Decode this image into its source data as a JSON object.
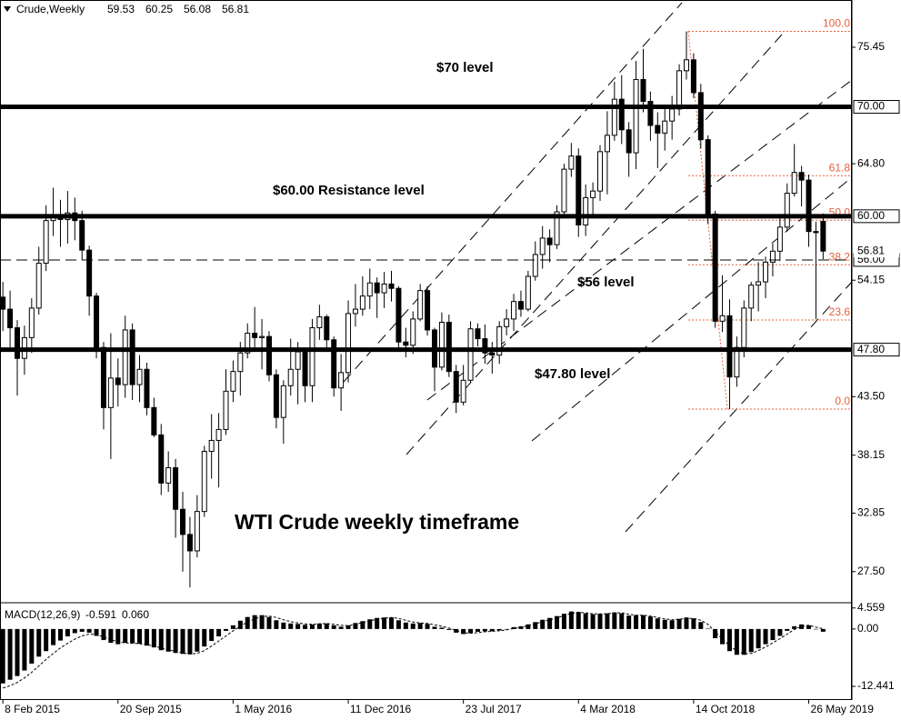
{
  "chart_data": {
    "type": "candlestick",
    "symbol": "Crude,Weekly",
    "x": [
      0,
      2,
      4,
      6,
      8,
      10,
      12,
      14,
      16,
      18,
      20,
      22,
      24,
      26,
      28,
      30,
      32,
      34,
      36,
      38,
      40,
      42,
      44,
      46,
      48,
      50,
      52,
      54,
      56,
      58,
      60,
      62,
      64,
      66,
      68,
      70,
      72,
      74,
      76,
      78,
      80,
      82,
      84,
      86,
      88,
      90,
      92,
      94,
      96,
      98,
      100,
      102,
      104,
      106,
      108,
      110,
      112,
      114,
      116,
      118,
      120,
      122,
      124,
      126,
      128,
      130,
      132,
      134,
      136,
      138,
      140,
      142,
      144,
      146,
      148,
      150,
      152,
      154,
      156,
      158,
      160,
      162,
      164,
      166,
      168,
      170,
      172,
      174,
      176,
      178,
      180,
      182,
      184,
      186,
      188,
      190,
      192,
      194,
      196,
      198,
      200,
      202,
      204,
      206,
      208,
      210,
      212,
      214,
      216,
      218,
      220,
      222,
      224,
      226,
      228
    ],
    "open": [
      52.6,
      51.5,
      49.8,
      47.0,
      48.9,
      51.6,
      55.7,
      59.6,
      60.0,
      59.7,
      60.3,
      59.6,
      56.9,
      52.7,
      48.0,
      42.5,
      45.2,
      44.6,
      49.6,
      44.6,
      46.0,
      42.5,
      40.0,
      35.6,
      37.0,
      33.2,
      30.9,
      29.4,
      33.0,
      38.5,
      39.5,
      40.5,
      44.0,
      45.8,
      47.5,
      49.3,
      48.9,
      49.0,
      45.5,
      41.6,
      44.5,
      46.0,
      47.6,
      44.5,
      49.8,
      50.8,
      48.7,
      44.3,
      45.7,
      51.1,
      51.5,
      52.7,
      53.9,
      53.0,
      53.8,
      53.4,
      48.5,
      48.2,
      50.6,
      53.2,
      49.6,
      46.2,
      50.3,
      45.8,
      43.0,
      45.0,
      49.7,
      48.8,
      47.5,
      47.3,
      49.9,
      50.6,
      52.2,
      51.5,
      54.5,
      56.5,
      58.0,
      57.4,
      60.4,
      64.3,
      65.5,
      59.2,
      61.7,
      62.3,
      65.9,
      67.4,
      70.7,
      67.9,
      65.8,
      72.5,
      70.5,
      68.3,
      67.6,
      68.7,
      69.8,
      73.3,
      74.3,
      71.3,
      67.0,
      60.2,
      50.4,
      50.9,
      45.3,
      48.0,
      51.6,
      53.7,
      54.0,
      55.8,
      56.8,
      59.0,
      62.1,
      64.0,
      63.3,
      58.6,
      59.53
    ],
    "high": [
      54.0,
      53.2,
      50.5,
      50.0,
      52.5,
      57.2,
      61.0,
      62.6,
      61.5,
      62.3,
      61.7,
      60.5,
      57.3,
      53.0,
      48.5,
      49.3,
      47.0,
      50.9,
      50.2,
      47.3,
      46.6,
      43.4,
      41.0,
      38.5,
      37.8,
      34.8,
      32.5,
      34.5,
      39.0,
      41.9,
      42.0,
      46.0,
      46.8,
      48.5,
      50.2,
      51.7,
      50.6,
      49.5,
      46.0,
      45.0,
      48.8,
      48.5,
      47.9,
      50.6,
      51.9,
      51.0,
      49.0,
      47.4,
      52.3,
      53.8,
      54.5,
      55.2,
      54.4,
      54.9,
      55.0,
      53.6,
      49.8,
      51.3,
      53.8,
      53.6,
      49.8,
      51.2,
      51.0,
      46.4,
      46.4,
      50.4,
      50.2,
      50.1,
      48.5,
      50.4,
      51.5,
      52.9,
      53.2,
      55.0,
      57.7,
      59.1,
      58.8,
      61.0,
      64.8,
      66.7,
      66.2,
      62.9,
      63.1,
      66.5,
      69.6,
      72.3,
      72.9,
      68.6,
      74.2,
      75.3,
      71.4,
      69.5,
      69.8,
      71.0,
      73.9,
      76.9,
      74.9,
      72.1,
      67.4,
      60.5,
      54.6,
      52.4,
      49.0,
      52.3,
      54.0,
      55.8,
      56.3,
      57.5,
      60.2,
      63.0,
      66.6,
      64.6,
      63.8,
      59.5,
      60.25
    ],
    "low": [
      49.5,
      48.0,
      43.6,
      45.5,
      47.5,
      51.0,
      55.0,
      58.2,
      57.2,
      57.5,
      57.8,
      56.0,
      50.9,
      47.0,
      40.5,
      37.8,
      42.6,
      43.4,
      43.2,
      43.0,
      41.8,
      39.8,
      34.5,
      34.8,
      30.6,
      27.5,
      26.05,
      28.8,
      32.5,
      36.0,
      35.2,
      40.0,
      43.0,
      43.6,
      47.0,
      47.8,
      46.0,
      44.9,
      40.6,
      39.2,
      43.6,
      42.8,
      43.0,
      43.0,
      48.7,
      47.8,
      43.5,
      42.2,
      44.8,
      49.9,
      50.9,
      51.5,
      50.7,
      51.6,
      52.2,
      47.9,
      47.1,
      47.4,
      50.4,
      49.1,
      44.0,
      45.9,
      45.3,
      42.0,
      42.7,
      44.8,
      48.1,
      46.5,
      45.6,
      46.5,
      49.1,
      49.5,
      50.8,
      51.3,
      54.1,
      55.2,
      55.8,
      57.0,
      59.9,
      63.6,
      58.1,
      58.2,
      60.1,
      61.4,
      62.0,
      66.9,
      66.6,
      63.6,
      64.3,
      69.5,
      66.9,
      64.4,
      66.0,
      67.0,
      69.2,
      72.5,
      70.8,
      66.2,
      59.3,
      49.8,
      49.4,
      42.36,
      44.4,
      47.1,
      50.4,
      51.3,
      52.5,
      54.5,
      55.9,
      58.6,
      61.8,
      60.9,
      57.2,
      50.6,
      56.08
    ],
    "close": [
      51.5,
      49.8,
      47.0,
      48.9,
      51.6,
      55.7,
      59.6,
      60.0,
      59.7,
      60.3,
      59.6,
      56.9,
      52.7,
      48.0,
      42.5,
      45.2,
      44.6,
      49.6,
      44.6,
      46.0,
      42.5,
      40.0,
      35.6,
      37.0,
      33.2,
      30.9,
      29.4,
      33.0,
      38.5,
      39.5,
      40.5,
      44.0,
      45.8,
      47.5,
      49.3,
      48.9,
      49.0,
      45.5,
      41.6,
      44.5,
      46.0,
      47.6,
      44.5,
      49.8,
      50.8,
      48.7,
      44.3,
      45.7,
      51.1,
      51.5,
      52.7,
      53.9,
      53.0,
      53.8,
      53.4,
      48.5,
      48.2,
      50.6,
      53.2,
      49.6,
      46.2,
      50.3,
      45.8,
      43.0,
      45.0,
      49.7,
      48.8,
      47.5,
      47.3,
      49.9,
      50.6,
      52.2,
      51.5,
      54.5,
      56.5,
      58.0,
      57.4,
      60.4,
      64.3,
      65.5,
      59.2,
      61.7,
      62.3,
      65.9,
      67.4,
      70.7,
      67.9,
      65.8,
      72.5,
      70.5,
      68.3,
      67.6,
      68.7,
      69.8,
      73.3,
      74.3,
      71.3,
      67.0,
      60.2,
      50.4,
      50.9,
      45.3,
      48.0,
      51.6,
      53.7,
      54.0,
      55.8,
      56.8,
      59.0,
      62.1,
      64.0,
      63.3,
      58.6,
      58.5,
      56.81
    ],
    "xlim": [
      -0.8,
      236
    ],
    "xticks": [
      {
        "value": 0,
        "label": "8 Feb 2015"
      },
      {
        "value": 32,
        "label": "20 Sep 2015"
      },
      {
        "value": 64,
        "label": "1 May 2016"
      },
      {
        "value": 96,
        "label": "11 Dec 2016"
      },
      {
        "value": 128,
        "label": "23 Jul 2017"
      },
      {
        "value": 160,
        "label": "4 Mar 2018"
      },
      {
        "value": 192,
        "label": "14 Oct 2018"
      },
      {
        "value": 224,
        "label": "26 May 2019"
      }
    ],
    "ylim": [
      24.74,
      79.77
    ],
    "yticks": [
      75.45,
      {
        "value": 64.8,
        "label": "64.80"
      },
      54.15,
      {
        "value": 43.5,
        "label": "43.50"
      },
      38.15,
      32.85,
      {
        "value": 27.5,
        "label": "27.50"
      }
    ],
    "levels": [
      {
        "value": 70,
        "label": "70.00",
        "style": "solid"
      },
      {
        "value": 60,
        "label": "60.00",
        "style": "solid"
      },
      {
        "value": 56,
        "label": "56.00",
        "style": "dashed"
      },
      {
        "value": 47.8,
        "label": "47.80",
        "style": "solid"
      }
    ],
    "fib": {
      "x": [
        190.5,
        201.4
      ],
      "high": 76.9,
      "low": 42.36,
      "color": "#e8603a",
      "levels": [
        {
          "value": 100,
          "label": "100.0"
        },
        61.8,
        {
          "value": 50,
          "label": "50.0"
        },
        38.2,
        23.6,
        {
          "value": 0,
          "label": "0.0"
        }
      ]
    },
    "annotations": [
      "$70 level",
      "$60.00 Resistance level",
      "$56 level",
      "$47.80 level",
      "WTI Crude weekly timeframe"
    ],
    "macd": {
      "name": "MACD(12,26,9)",
      "header_values": [
        -0.591,
        {
          "value": 0.06,
          "label": "0.060"
        }
      ],
      "ylim": [
        -15.4,
        5.5
      ],
      "yticks": [
        4.559,
        {
          "value": 0,
          "label": "0.00"
        },
        -12.441
      ],
      "histogram": [
        -11.8,
        -11.0,
        -10.2,
        -9.0,
        -7.5,
        -6.0,
        -4.8,
        -3.5,
        -2.5,
        -1.6,
        -0.9,
        -0.6,
        -0.8,
        -1.5,
        -2.4,
        -3.0,
        -3.3,
        -3.0,
        -3.1,
        -3.2,
        -3.6,
        -4.0,
        -4.6,
        -4.9,
        -5.2,
        -5.4,
        -5.5,
        -4.9,
        -3.8,
        -2.6,
        -1.6,
        -0.4,
        0.8,
        1.8,
        2.6,
        3.0,
        3.0,
        2.6,
        1.9,
        1.4,
        1.2,
        1.1,
        0.9,
        1.0,
        1.2,
        1.2,
        0.8,
        0.5,
        0.8,
        1.3,
        1.7,
        2.1,
        2.4,
        2.5,
        2.5,
        1.9,
        1.4,
        1.2,
        1.3,
        1.1,
        0.5,
        0.3,
        -0.2,
        -0.8,
        -1.1,
        -0.9,
        -0.6,
        -0.5,
        -0.5,
        -0.3,
        0.0,
        0.4,
        0.6,
        1.0,
        1.5,
        2.0,
        2.4,
        2.8,
        3.3,
        3.8,
        3.7,
        3.4,
        3.2,
        3.3,
        3.4,
        3.6,
        3.4,
        2.9,
        3.0,
        3.0,
        2.7,
        2.3,
        2.0,
        1.9,
        2.2,
        2.5,
        2.3,
        1.5,
        0.1,
        -2.0,
        -3.3,
        -4.8,
        -5.6,
        -5.6,
        -5.0,
        -4.2,
        -3.3,
        -2.4,
        -1.5,
        -0.4,
        0.6,
        1.0,
        0.8,
        0.0,
        -0.591
      ],
      "signal": [
        -12.8,
        -12.3,
        -11.6,
        -10.6,
        -9.4,
        -8.0,
        -6.6,
        -5.3,
        -4.1,
        -3.1,
        -2.2,
        -1.5,
        -1.1,
        -1.2,
        -1.7,
        -2.3,
        -2.8,
        -3.0,
        -3.1,
        -3.2,
        -3.4,
        -3.7,
        -4.1,
        -4.5,
        -4.9,
        -5.2,
        -5.4,
        -5.3,
        -4.7,
        -3.7,
        -2.6,
        -1.5,
        -0.4,
        0.6,
        1.5,
        2.2,
        2.7,
        2.8,
        2.5,
        2.0,
        1.6,
        1.3,
        1.1,
        1.0,
        1.1,
        1.2,
        1.0,
        0.8,
        0.7,
        1.0,
        1.4,
        1.8,
        2.1,
        2.3,
        2.5,
        2.3,
        1.9,
        1.5,
        1.3,
        1.2,
        0.9,
        0.6,
        0.2,
        -0.3,
        -0.8,
        -0.9,
        -0.8,
        -0.6,
        -0.5,
        -0.4,
        -0.2,
        0.1,
        0.4,
        0.7,
        1.1,
        1.6,
        2.0,
        2.4,
        2.9,
        3.4,
        3.6,
        3.5,
        3.3,
        3.3,
        3.3,
        3.5,
        3.5,
        3.2,
        3.0,
        3.0,
        2.8,
        2.5,
        2.2,
        2.0,
        2.1,
        2.3,
        2.3,
        1.9,
        1.0,
        -0.6,
        -2.2,
        -3.6,
        -4.8,
        -5.4,
        -5.3,
        -4.7,
        -3.9,
        -3.0,
        -2.1,
        -1.1,
        -0.1,
        0.6,
        0.8,
        0.4,
        0.06
      ]
    }
  }
}
